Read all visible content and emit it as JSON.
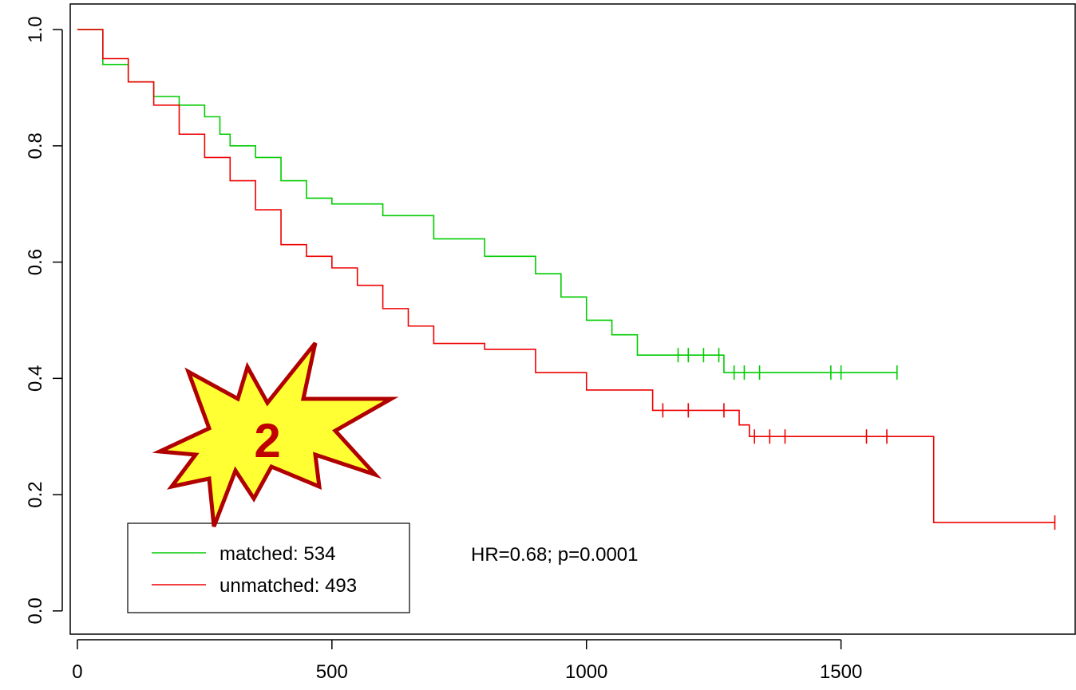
{
  "chart_data": {
    "type": "line",
    "step": true,
    "xlim": [
      -14,
      1960
    ],
    "ylim": [
      -0.04,
      1.044
    ],
    "xticks": [
      0,
      500,
      1000,
      1500
    ],
    "yticks": [
      {
        "value": 0,
        "label": "0.0"
      },
      0.2,
      0.4,
      0.6,
      0.8,
      {
        "value": 1,
        "label": "1.0"
      }
    ],
    "series": [
      {
        "name": "matched: 534",
        "color": "#00cc00",
        "x": [
          0,
          50,
          100,
          150,
          200,
          250,
          280,
          300,
          350,
          400,
          450,
          500,
          600,
          700,
          800,
          900,
          950,
          1000,
          1050,
          1100,
          1270,
          1610
        ],
        "values": [
          1.0,
          0.94,
          0.91,
          0.885,
          0.87,
          0.85,
          0.82,
          0.8,
          0.78,
          0.74,
          0.71,
          0.7,
          0.68,
          0.64,
          0.61,
          0.58,
          0.54,
          0.5,
          0.475,
          0.44,
          0.41,
          0.41
        ],
        "censored": [
          1180,
          1200,
          1230,
          1260,
          1290,
          1310,
          1340,
          1480,
          1500,
          1610
        ]
      },
      {
        "name": "unmatched: 493",
        "color": "#ee0000",
        "x": [
          0,
          50,
          100,
          150,
          200,
          250,
          300,
          350,
          400,
          450,
          500,
          550,
          600,
          650,
          700,
          800,
          900,
          1000,
          1130,
          1300,
          1320,
          1682,
          1920
        ],
        "values": [
          1.0,
          0.95,
          0.91,
          0.87,
          0.82,
          0.78,
          0.74,
          0.69,
          0.63,
          0.61,
          0.59,
          0.56,
          0.52,
          0.49,
          0.46,
          0.45,
          0.41,
          0.38,
          0.345,
          0.32,
          0.3,
          0.152,
          0.152
        ],
        "censored": [
          1150,
          1200,
          1270,
          1330,
          1360,
          1390,
          1550,
          1590,
          1920
        ]
      }
    ],
    "annotation": "HR=0.68; p=0.0001",
    "badge": "2"
  }
}
